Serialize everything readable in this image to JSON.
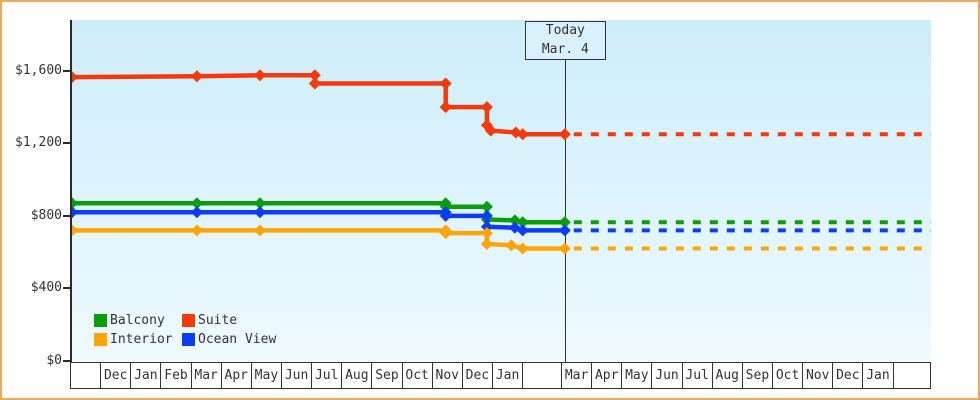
{
  "frame": {
    "border_color": "#eba85e",
    "background": "#ffffff"
  },
  "colors": {
    "axis": "#2b2b2b",
    "text": "#333333",
    "grid_box": "#333333",
    "today_box_bg": "#d9f1fc",
    "plot_gradient_top": "#cdedfa",
    "plot_gradient_bottom": "#effaff"
  },
  "today_box": {
    "line1": "Today",
    "line2": "Mar. 4"
  },
  "chart_data": {
    "type": "line",
    "title": "",
    "currency": "USD",
    "ylim": [
      0,
      1880
    ],
    "grid": false,
    "legend_position": "bottom-left",
    "y_ticks": [
      {
        "value": 0,
        "label": "$0"
      },
      {
        "value": 400,
        "label": "$400"
      },
      {
        "value": 800,
        "label": "$800"
      },
      {
        "value": 1200,
        "label": "$1,200"
      },
      {
        "value": 1600,
        "label": "$1,600"
      }
    ],
    "x_axis_cells": [
      {
        "label": "",
        "w": 1
      },
      {
        "label": "Dec",
        "w": 1
      },
      {
        "label": "Jan",
        "w": 1
      },
      {
        "label": "Feb",
        "w": 1
      },
      {
        "label": "Mar",
        "w": 1
      },
      {
        "label": "Apr",
        "w": 1
      },
      {
        "label": "May",
        "w": 1
      },
      {
        "label": "Jun",
        "w": 1
      },
      {
        "label": "Jul",
        "w": 1
      },
      {
        "label": "Aug",
        "w": 1
      },
      {
        "label": "Sep",
        "w": 1
      },
      {
        "label": "Oct",
        "w": 1
      },
      {
        "label": "Nov",
        "w": 1
      },
      {
        "label": "Dec",
        "w": 1
      },
      {
        "label": "Jan",
        "w": 1
      },
      {
        "label": "",
        "w": 1.3
      },
      {
        "label": "Mar",
        "w": 1
      },
      {
        "label": "Apr",
        "w": 1
      },
      {
        "label": "May",
        "w": 1
      },
      {
        "label": "Jun",
        "w": 1
      },
      {
        "label": "Jul",
        "w": 1
      },
      {
        "label": "Aug",
        "w": 1
      },
      {
        "label": "Sep",
        "w": 1
      },
      {
        "label": "Oct",
        "w": 1
      },
      {
        "label": "Nov",
        "w": 1
      },
      {
        "label": "Dec",
        "w": 1
      },
      {
        "label": "Jan",
        "w": 1
      },
      {
        "label": "",
        "w": 1.25
      }
    ],
    "today_x": 16.38,
    "series": [
      {
        "name": "Suite",
        "color": "#f23a0d",
        "points": [
          [
            0,
            1565
          ],
          [
            4.15,
            1570
          ],
          [
            6.25,
            1575
          ],
          [
            8.07,
            1575
          ],
          [
            8.07,
            1530
          ],
          [
            12.42,
            1530
          ],
          [
            12.42,
            1400
          ],
          [
            13.79,
            1400
          ],
          [
            13.79,
            1300
          ],
          [
            13.92,
            1270
          ],
          [
            14.75,
            1260
          ],
          [
            14.98,
            1250
          ],
          [
            16.38,
            1250
          ]
        ],
        "forecast_price": 1250
      },
      {
        "name": "Balcony",
        "color": "#0a9e0a",
        "points": [
          [
            0,
            870
          ],
          [
            4.15,
            870
          ],
          [
            6.25,
            870
          ],
          [
            12.42,
            870
          ],
          [
            12.42,
            850
          ],
          [
            13.79,
            850
          ],
          [
            13.79,
            780
          ],
          [
            14.72,
            775
          ],
          [
            14.98,
            765
          ],
          [
            16.38,
            765
          ]
        ],
        "forecast_price": 765
      },
      {
        "name": "Ocean View",
        "color": "#0d3df2",
        "points": [
          [
            0,
            820
          ],
          [
            4.15,
            820
          ],
          [
            6.25,
            820
          ],
          [
            12.42,
            820
          ],
          [
            12.42,
            800
          ],
          [
            13.79,
            800
          ],
          [
            13.79,
            740
          ],
          [
            14.72,
            735
          ],
          [
            14.98,
            720
          ],
          [
            16.38,
            720
          ]
        ],
        "forecast_price": 720
      },
      {
        "name": "Interior",
        "color": "#ffa50a",
        "points": [
          [
            0,
            720
          ],
          [
            4.15,
            720
          ],
          [
            6.25,
            720
          ],
          [
            12.42,
            720
          ],
          [
            12.42,
            705
          ],
          [
            13.79,
            705
          ],
          [
            13.79,
            645
          ],
          [
            14.6,
            638
          ],
          [
            14.98,
            620
          ],
          [
            16.38,
            620
          ]
        ],
        "forecast_price": 620
      }
    ],
    "legend": [
      {
        "label": "Balcony",
        "color": "#0a9e0a"
      },
      {
        "label": "Suite",
        "color": "#f23a0d"
      },
      {
        "label": "Interior",
        "color": "#ffa50a"
      },
      {
        "label": "Ocean View",
        "color": "#0d3df2"
      }
    ]
  }
}
